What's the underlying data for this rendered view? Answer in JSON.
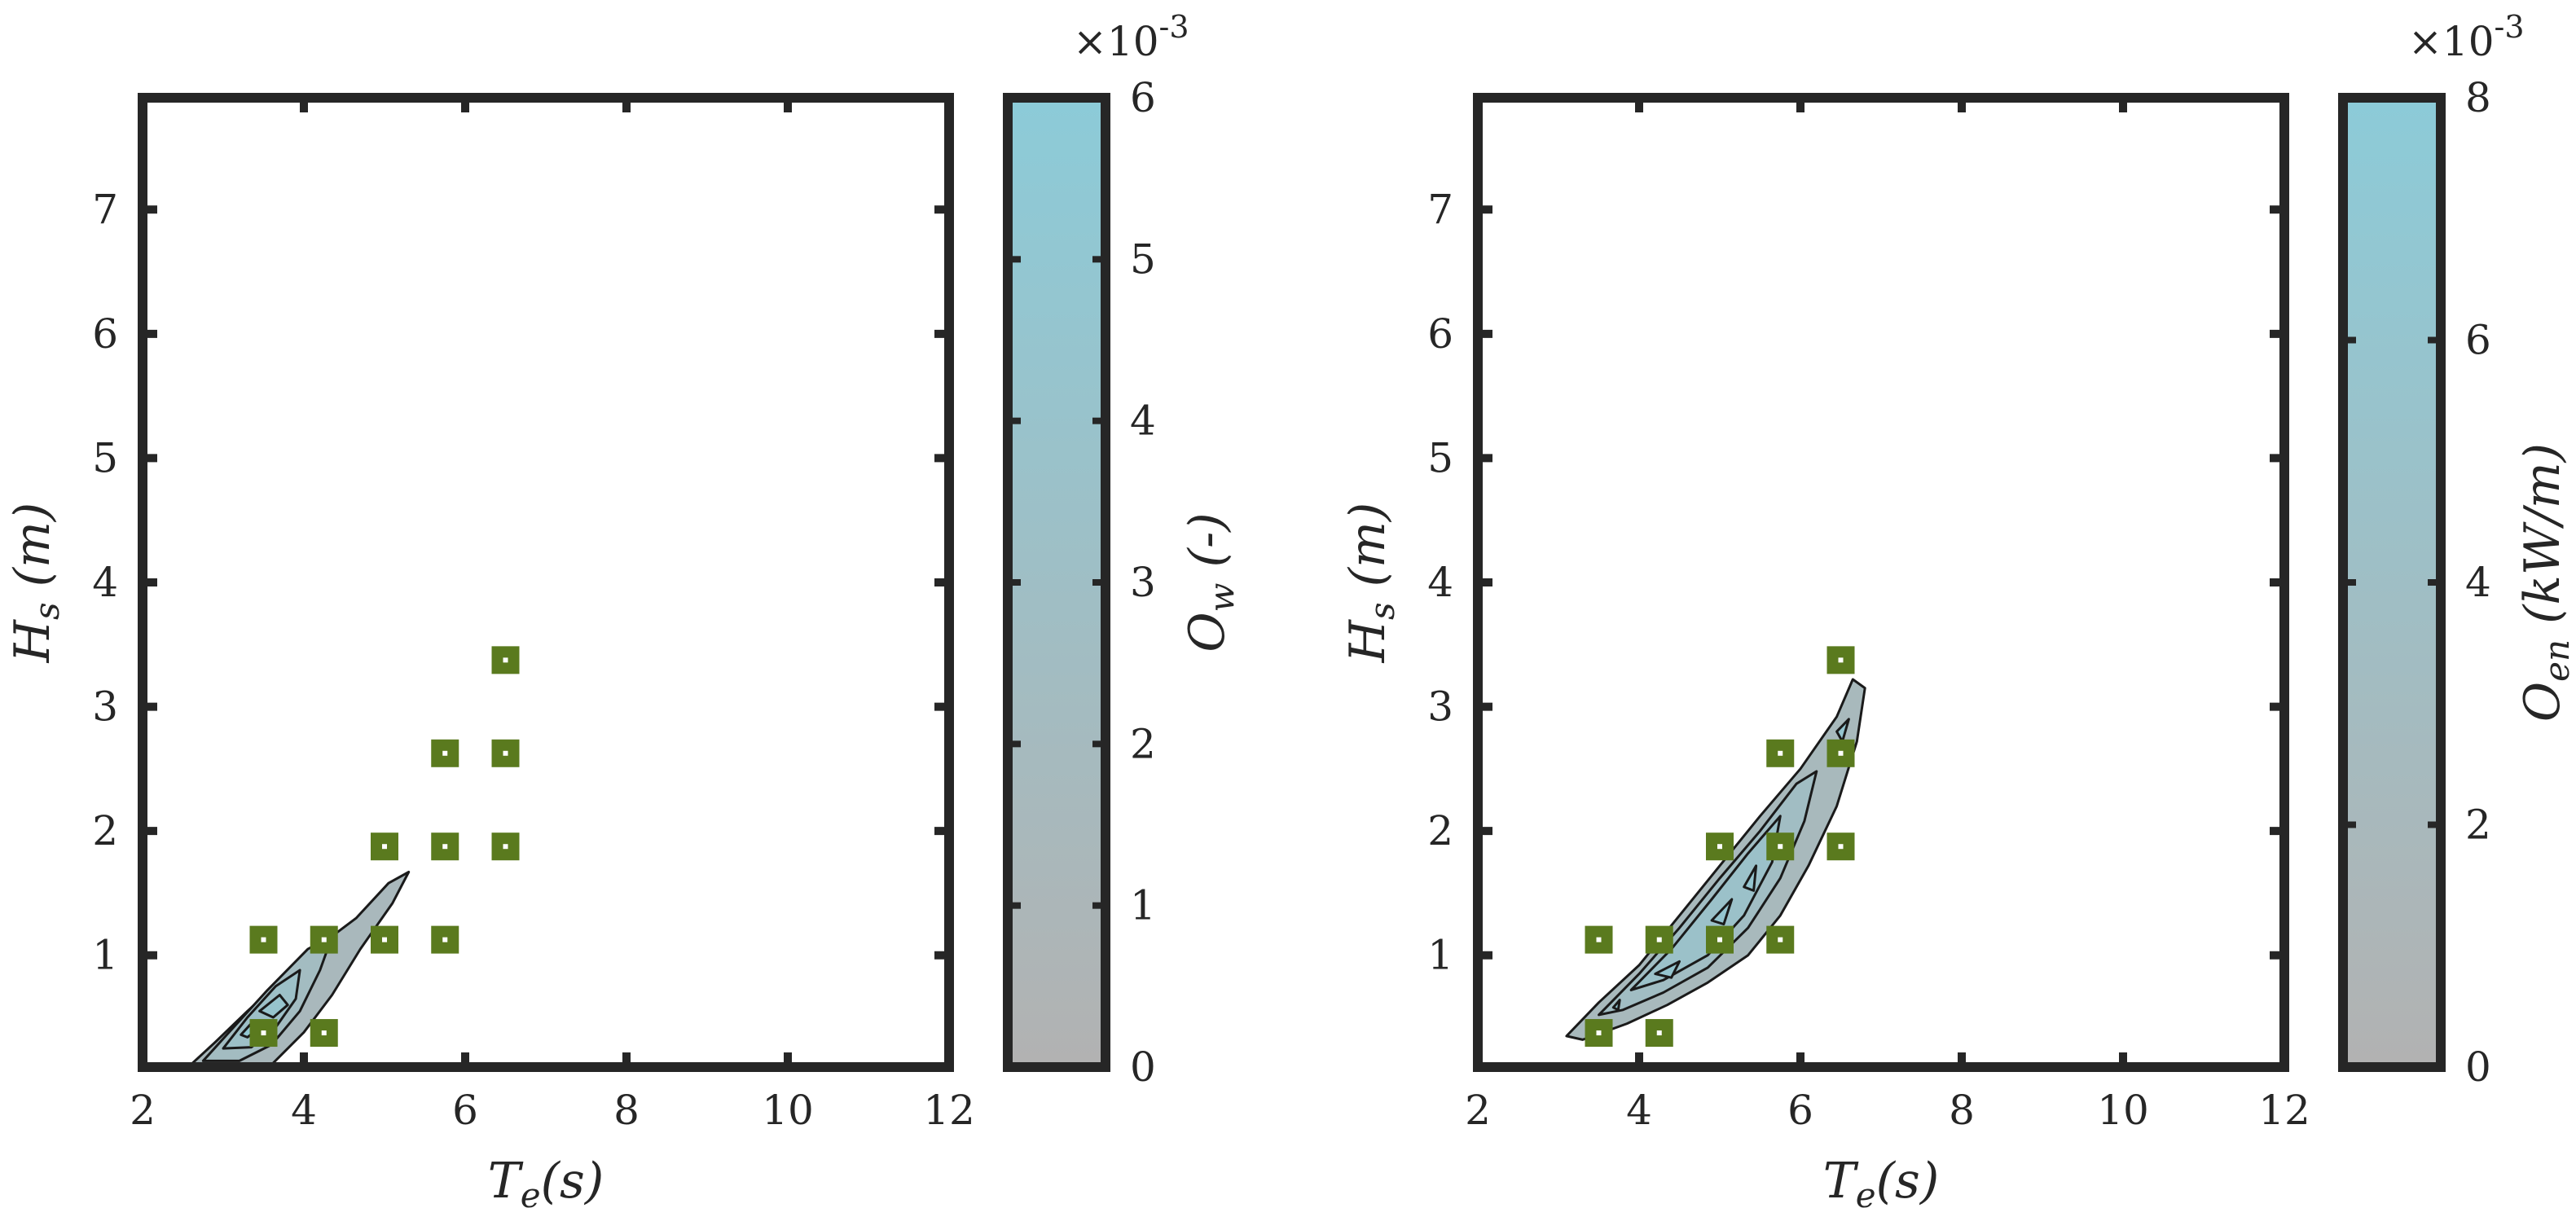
{
  "colors": {
    "frame": "#262626",
    "colormap_low": "#b2b2b2",
    "colormap_high": "#8ccbd8",
    "marker_fill": "#5a7a1e",
    "marker_center": "#ffffff",
    "contour_line": "#1a1a1a"
  },
  "chart_data": [
    {
      "type": "contour",
      "xlabel": "Te(s)",
      "ylabel": "Hs (m)",
      "colorbar_label": "Ow (-)",
      "colorbar_exponent": "×10-3",
      "xlim": [
        2,
        12
      ],
      "ylim": [
        0.1,
        7.9
      ],
      "x_ticks": [
        "2",
        "4",
        "6",
        "8",
        "10",
        "12"
      ],
      "y_ticks": [
        "1",
        "2",
        "3",
        "4",
        "5",
        "6",
        "7"
      ],
      "colorbar_ticks": [
        "0",
        "1",
        "2",
        "3",
        "4",
        "5",
        "6"
      ],
      "colorbar_range": [
        0,
        6
      ],
      "contour_levels": [
        {
          "level": 1,
          "points": [
            [
              2.6,
              0.12
            ],
            [
              2.9,
              0.3
            ],
            [
              3.3,
              0.55
            ],
            [
              3.75,
              0.82
            ],
            [
              4.2,
              1.08
            ],
            [
              4.65,
              1.3
            ],
            [
              5.05,
              1.58
            ],
            [
              5.3,
              1.67
            ],
            [
              5.1,
              1.42
            ],
            [
              4.7,
              1.05
            ],
            [
              4.35,
              0.68
            ],
            [
              4.0,
              0.38
            ],
            [
              3.6,
              0.12
            ]
          ]
        },
        {
          "level": 2,
          "points": [
            [
              2.75,
              0.15
            ],
            [
              3.1,
              0.4
            ],
            [
              3.55,
              0.72
            ],
            [
              4.05,
              1.05
            ],
            [
              4.35,
              1.15
            ],
            [
              4.2,
              0.88
            ],
            [
              3.95,
              0.55
            ],
            [
              3.6,
              0.28
            ],
            [
              3.2,
              0.15
            ]
          ]
        },
        {
          "level": 3,
          "points": [
            [
              3.0,
              0.25
            ],
            [
              3.3,
              0.5
            ],
            [
              3.65,
              0.75
            ],
            [
              3.95,
              0.88
            ],
            [
              3.9,
              0.65
            ],
            [
              3.65,
              0.42
            ],
            [
              3.35,
              0.26
            ]
          ]
        },
        {
          "level": 4,
          "points": [
            [
              3.45,
              0.55
            ],
            [
              3.7,
              0.68
            ],
            [
              3.8,
              0.6
            ],
            [
              3.62,
              0.5
            ]
          ]
        },
        {
          "level": 5,
          "points": [
            [
              3.22,
              0.36
            ],
            [
              3.36,
              0.46
            ],
            [
              3.42,
              0.4
            ],
            [
              3.3,
              0.34
            ]
          ]
        }
      ],
      "markers": [
        [
          3.5,
          0.375
        ],
        [
          3.5,
          1.125
        ],
        [
          4.25,
          0.375
        ],
        [
          4.25,
          1.125
        ],
        [
          5.0,
          1.125
        ],
        [
          5.0,
          1.875
        ],
        [
          5.75,
          1.125
        ],
        [
          5.75,
          1.875
        ],
        [
          5.75,
          2.625
        ],
        [
          6.5,
          1.875
        ],
        [
          6.5,
          2.625
        ],
        [
          6.5,
          3.375
        ]
      ]
    },
    {
      "type": "contour",
      "xlabel": "Te(s)",
      "ylabel": "Hs (m)",
      "colorbar_label": "Oen (kW/m)",
      "colorbar_exponent": "×10-3",
      "xlim": [
        2,
        12
      ],
      "ylim": [
        0.1,
        7.9
      ],
      "x_ticks": [
        "2",
        "4",
        "6",
        "8",
        "10",
        "12"
      ],
      "y_ticks": [
        "1",
        "2",
        "3",
        "4",
        "5",
        "6",
        "7"
      ],
      "colorbar_ticks": [
        "0",
        "2",
        "4",
        "6",
        "8"
      ],
      "colorbar_range": [
        0,
        8
      ],
      "contour_levels": [
        {
          "level": 1.5,
          "points": [
            [
              3.1,
              0.35
            ],
            [
              3.5,
              0.62
            ],
            [
              4.0,
              0.92
            ],
            [
              4.5,
              1.32
            ],
            [
              5.0,
              1.72
            ],
            [
              5.5,
              2.12
            ],
            [
              6.0,
              2.5
            ],
            [
              6.45,
              2.92
            ],
            [
              6.65,
              3.22
            ],
            [
              6.8,
              3.15
            ],
            [
              6.7,
              2.72
            ],
            [
              6.45,
              2.2
            ],
            [
              6.1,
              1.72
            ],
            [
              5.75,
              1.32
            ],
            [
              5.35,
              1.0
            ],
            [
              4.85,
              0.78
            ],
            [
              4.35,
              0.6
            ],
            [
              3.85,
              0.45
            ],
            [
              3.3,
              0.32
            ]
          ]
        },
        {
          "level": 3,
          "points": [
            [
              3.5,
              0.52
            ],
            [
              4.0,
              0.85
            ],
            [
              4.5,
              1.22
            ],
            [
              5.0,
              1.62
            ],
            [
              5.5,
              2.0
            ],
            [
              5.95,
              2.38
            ],
            [
              6.2,
              2.48
            ],
            [
              6.05,
              2.08
            ],
            [
              5.75,
              1.62
            ],
            [
              5.35,
              1.22
            ],
            [
              4.85,
              0.9
            ],
            [
              4.3,
              0.7
            ],
            [
              3.8,
              0.56
            ]
          ]
        },
        {
          "level": 4.5,
          "points": [
            [
              3.9,
              0.72
            ],
            [
              4.4,
              1.05
            ],
            [
              4.9,
              1.45
            ],
            [
              5.35,
              1.82
            ],
            [
              5.75,
              2.12
            ],
            [
              5.65,
              1.75
            ],
            [
              5.3,
              1.32
            ],
            [
              4.85,
              1.0
            ],
            [
              4.3,
              0.8
            ]
          ]
        },
        {
          "level": 6,
          "points": [
            [
              4.2,
              0.85
            ],
            [
              4.5,
              0.95
            ],
            [
              4.4,
              0.82
            ]
          ]
        },
        {
          "level": 6,
          "points": [
            [
              4.9,
              1.28
            ],
            [
              5.15,
              1.45
            ],
            [
              5.05,
              1.25
            ]
          ]
        },
        {
          "level": 6,
          "points": [
            [
              5.3,
              1.55
            ],
            [
              5.45,
              1.72
            ],
            [
              5.42,
              1.52
            ]
          ]
        },
        {
          "level": 6,
          "points": [
            [
              6.45,
              2.8
            ],
            [
              6.6,
              2.9
            ],
            [
              6.52,
              2.72
            ]
          ]
        },
        {
          "level": 7,
          "points": [
            [
              3.68,
              0.58
            ],
            [
              3.76,
              0.64
            ],
            [
              3.74,
              0.56
            ]
          ]
        }
      ],
      "markers": [
        [
          3.5,
          0.375
        ],
        [
          3.5,
          1.125
        ],
        [
          4.25,
          0.375
        ],
        [
          4.25,
          1.125
        ],
        [
          5.0,
          1.125
        ],
        [
          5.0,
          1.875
        ],
        [
          5.75,
          1.125
        ],
        [
          5.75,
          1.875
        ],
        [
          5.75,
          2.625
        ],
        [
          6.5,
          1.875
        ],
        [
          6.5,
          2.625
        ],
        [
          6.5,
          3.375
        ]
      ]
    }
  ]
}
